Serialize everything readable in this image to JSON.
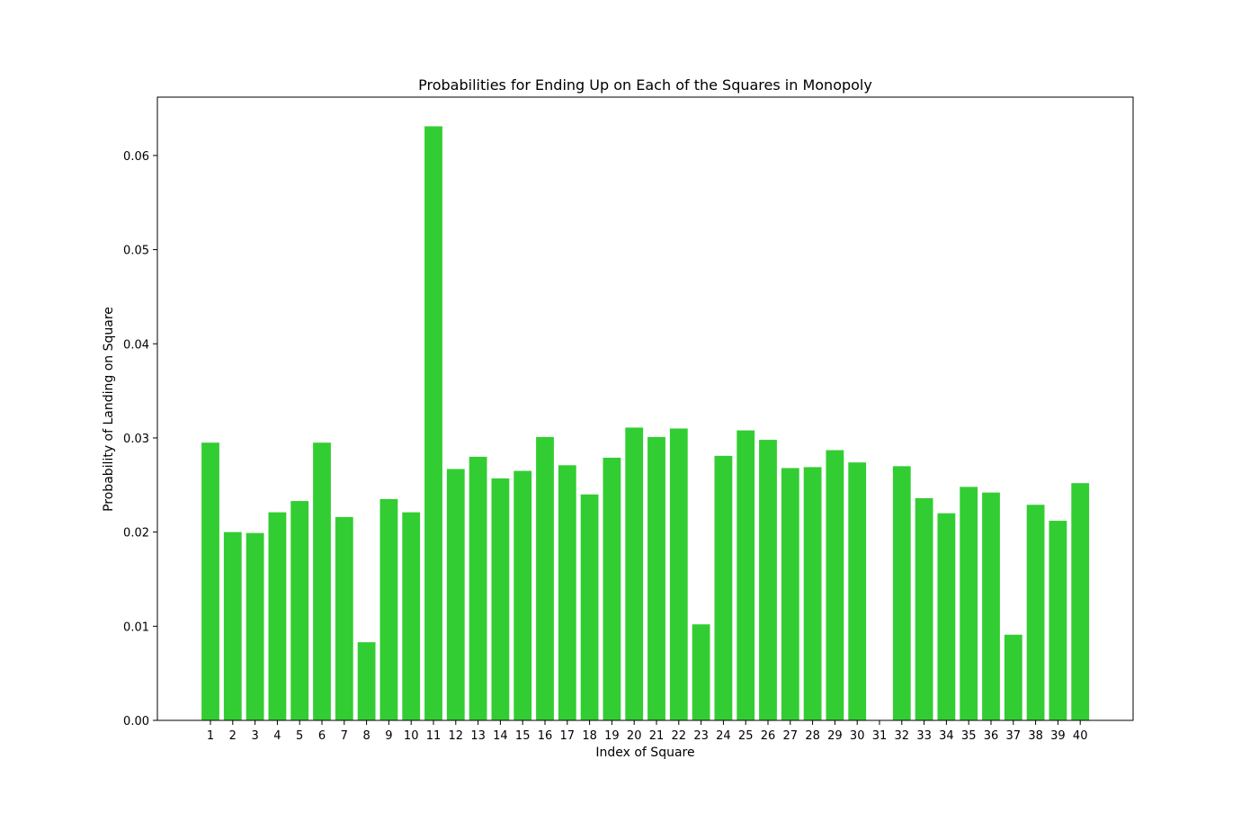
{
  "chart_data": {
    "type": "bar",
    "title": "Probabilities for Ending Up on Each of the Squares in Monopoly",
    "xlabel": "Index of Square",
    "ylabel": "Probability of Landing on Square",
    "categories": [
      "1",
      "2",
      "3",
      "4",
      "5",
      "6",
      "7",
      "8",
      "9",
      "10",
      "11",
      "12",
      "13",
      "14",
      "15",
      "16",
      "17",
      "18",
      "19",
      "20",
      "21",
      "22",
      "23",
      "24",
      "25",
      "26",
      "27",
      "28",
      "29",
      "30",
      "31",
      "32",
      "33",
      "34",
      "35",
      "36",
      "37",
      "38",
      "39",
      "40"
    ],
    "values": [
      0.0295,
      0.02,
      0.0199,
      0.0221,
      0.0233,
      0.0295,
      0.0216,
      0.0083,
      0.0235,
      0.0221,
      0.0631,
      0.0267,
      0.028,
      0.0257,
      0.0265,
      0.0301,
      0.0271,
      0.024,
      0.0279,
      0.0311,
      0.0301,
      0.031,
      0.0102,
      0.0281,
      0.0308,
      0.0298,
      0.0268,
      0.0269,
      0.0287,
      0.0274,
      0.0,
      0.027,
      0.0236,
      0.022,
      0.0248,
      0.0242,
      0.0091,
      0.0229,
      0.0212,
      0.0252
    ],
    "yticks": [
      "0.00",
      "0.01",
      "0.02",
      "0.03",
      "0.04",
      "0.05",
      "0.06"
    ],
    "ylim": [
      0,
      0.0662
    ],
    "bar_color": "#32cd32",
    "grid": false,
    "legend": "none"
  }
}
